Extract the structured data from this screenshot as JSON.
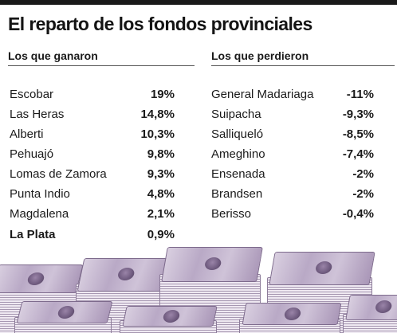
{
  "title": "El reparto de los fondos provinciales",
  "columns": {
    "left": {
      "header": "Los que ganaron",
      "rows": [
        {
          "name": "Escobar",
          "pct": "19%"
        },
        {
          "name": "Las Heras",
          "pct": "14,8%"
        },
        {
          "name": "Alberti",
          "pct": "10,3%"
        },
        {
          "name": "Pehuajó",
          "pct": "9,8%"
        },
        {
          "name": "Lomas de Zamora",
          "pct": "9,3%"
        },
        {
          "name": "Punta Indio",
          "pct": "4,8%"
        },
        {
          "name": "Magdalena",
          "pct": "2,1%"
        },
        {
          "name": "La Plata",
          "pct": "0,9%"
        }
      ]
    },
    "right": {
      "header": "Los que perdieron",
      "rows": [
        {
          "name": "General Madariaga",
          "pct": "-11%"
        },
        {
          "name": "Suipacha",
          "pct": "-9,3%"
        },
        {
          "name": "Salliqueló",
          "pct": "-8,5%"
        },
        {
          "name": "Ameghino",
          "pct": "-7,4%"
        },
        {
          "name": "Ensenada",
          "pct": "-2%"
        },
        {
          "name": "Brandsen",
          "pct": "-2%"
        },
        {
          "name": "Berisso",
          "pct": "-0,4%"
        }
      ]
    }
  },
  "colors": {
    "text": "#1a1a1a",
    "rule": "#1a1a1a",
    "bill": "#b9a9c6"
  }
}
